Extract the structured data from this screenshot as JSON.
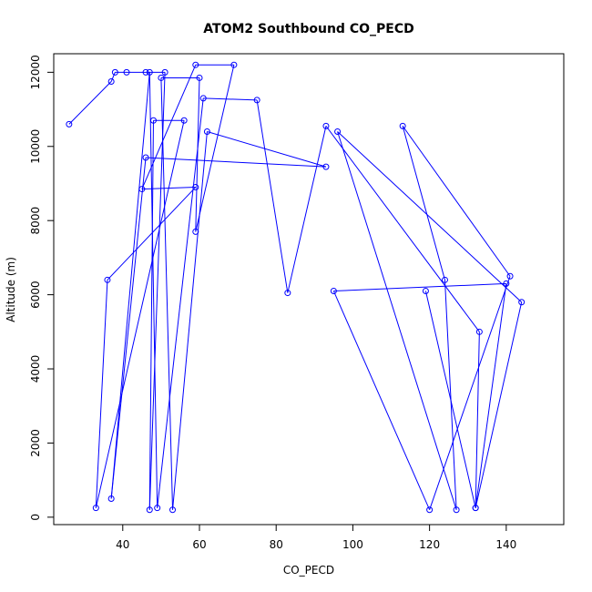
{
  "chart_data": {
    "type": "line",
    "title": "ATOM2 Southbound CO_PECD",
    "xlabel": "CO_PECD",
    "ylabel": "Altitude (m)",
    "xlim": [
      22,
      155
    ],
    "ylim": [
      -200,
      12500
    ],
    "xticks": [
      40,
      60,
      80,
      100,
      120,
      140
    ],
    "yticks": [
      0,
      2000,
      4000,
      6000,
      8000,
      10000,
      12000
    ],
    "grid": false,
    "legend": "none",
    "series_color": "#0000ff",
    "marker": "open-circle",
    "points": [
      [
        26,
        10600
      ],
      [
        37,
        11750
      ],
      [
        38,
        12000
      ],
      [
        41,
        12000
      ],
      [
        46,
        12000
      ],
      [
        51,
        12000
      ],
      [
        47,
        200
      ],
      [
        48,
        10700
      ],
      [
        56,
        10700
      ],
      [
        33,
        250
      ],
      [
        36,
        6400
      ],
      [
        59,
        8900
      ],
      [
        45,
        8850
      ],
      [
        59,
        12200
      ],
      [
        69,
        12200
      ],
      [
        59,
        7700
      ],
      [
        60,
        11850
      ],
      [
        50,
        11850
      ],
      [
        53,
        200
      ],
      [
        62,
        10400
      ],
      [
        93,
        9450
      ],
      [
        46,
        9700
      ],
      [
        37,
        500
      ],
      [
        47,
        12000
      ],
      [
        49,
        250
      ],
      [
        61,
        11300
      ],
      [
        75,
        11250
      ],
      [
        83,
        6050
      ],
      [
        93,
        10550
      ],
      [
        133,
        5000
      ],
      [
        132,
        250
      ],
      [
        144,
        5800
      ],
      [
        96,
        10400
      ],
      [
        127,
        200
      ],
      [
        124,
        6400
      ],
      [
        113,
        10550
      ],
      [
        141,
        6500
      ],
      [
        120,
        200
      ],
      [
        95,
        6100
      ],
      [
        140,
        6300
      ],
      [
        132,
        250
      ],
      [
        119,
        6100
      ]
    ]
  }
}
